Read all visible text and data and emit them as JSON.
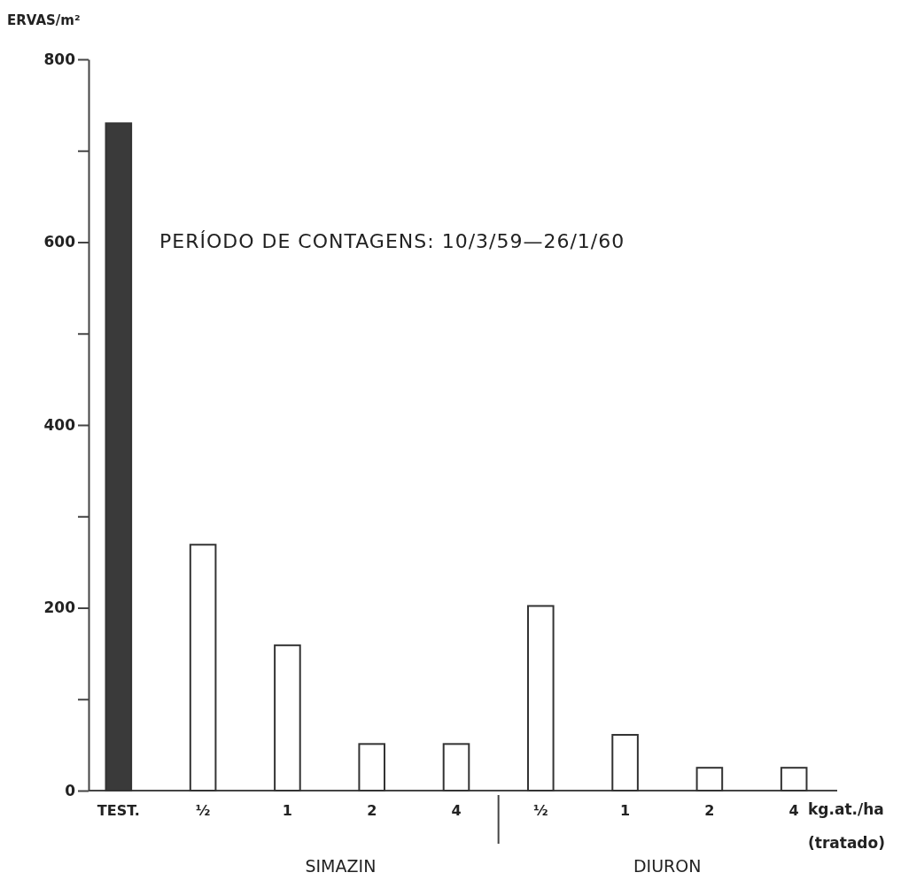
{
  "chart_data": {
    "type": "bar",
    "title": "PERÍODO DE CONTAGENS: 10/3/59—26/1/60",
    "ylabel": "ERVAS/m²",
    "xlabel": "kg.at./ha (tratado)",
    "categories": [
      "TEST.",
      "½",
      "1",
      "2",
      "4",
      "½",
      "1",
      "2",
      "4"
    ],
    "values": [
      730,
      269,
      159,
      51,
      51,
      202,
      61,
      25,
      25
    ],
    "colors": [
      "#3a3a3a",
      "#ffffff",
      "#ffffff",
      "#ffffff",
      "#ffffff",
      "#ffffff",
      "#ffffff",
      "#ffffff",
      "#ffffff"
    ],
    "ylim": [
      0,
      800
    ],
    "yticks": [
      0,
      {
        "value": 100,
        "label": null
      },
      200,
      {
        "value": 300,
        "label": null
      },
      400,
      {
        "value": 500,
        "label": null
      },
      600,
      {
        "value": 700,
        "label": null
      },
      800
    ],
    "annotations": [
      "SIMAZIN",
      "DIURON"
    ],
    "grid": false
  }
}
